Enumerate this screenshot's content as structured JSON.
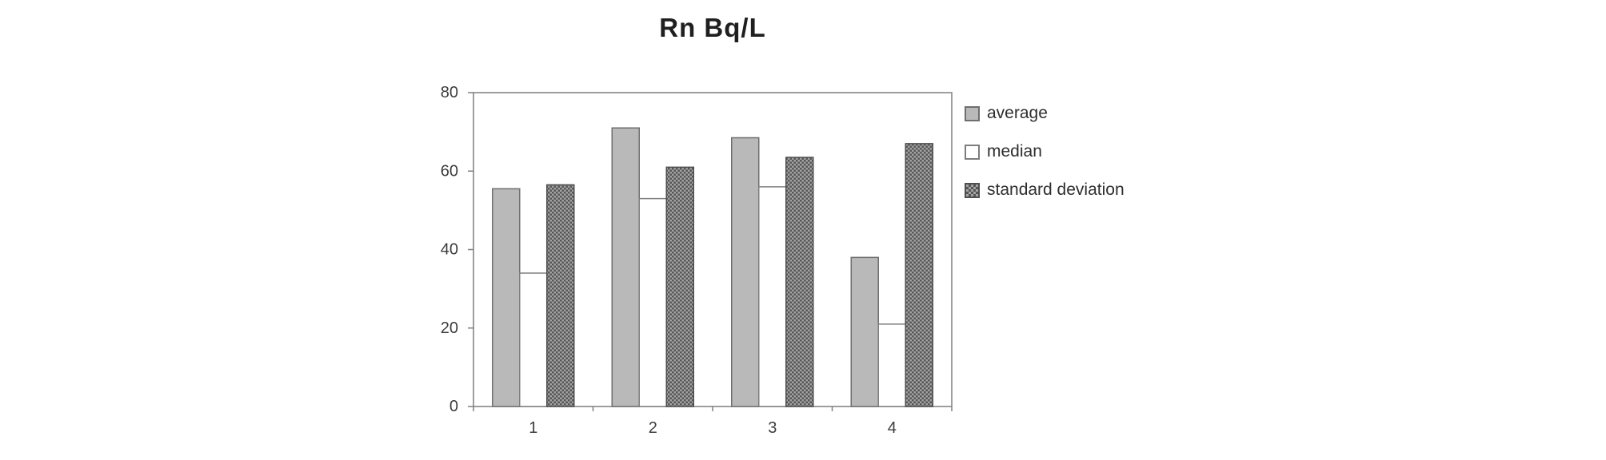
{
  "figure": {
    "title": "Rn Bq/L"
  },
  "chart_data": {
    "type": "bar",
    "title": "Rn Bq/L",
    "categories": [
      "1",
      "2",
      "3",
      "4"
    ],
    "series": [
      {
        "name": "average",
        "values": [
          55.5,
          71,
          68.5,
          38
        ],
        "fill": "#b9b9b9",
        "stroke": "#6e6e6e",
        "pattern": false
      },
      {
        "name": "median",
        "values": [
          34,
          53,
          56,
          21
        ],
        "fill": "#ffffff",
        "stroke": "#7d7d7d",
        "pattern": false
      },
      {
        "name": "standard deviation",
        "values": [
          56.5,
          61,
          63.5,
          67
        ],
        "fill": "#8f8f8f",
        "stroke": "#4f4f4f",
        "pattern": true
      }
    ],
    "xlabel": "",
    "ylabel": "",
    "ylim": [
      0,
      80
    ],
    "yticks": [
      0,
      20,
      40,
      60,
      80
    ],
    "grid": false,
    "legend_position": "right",
    "axis_color": "#7f7f7f",
    "text_color": "#3d3d3d"
  }
}
